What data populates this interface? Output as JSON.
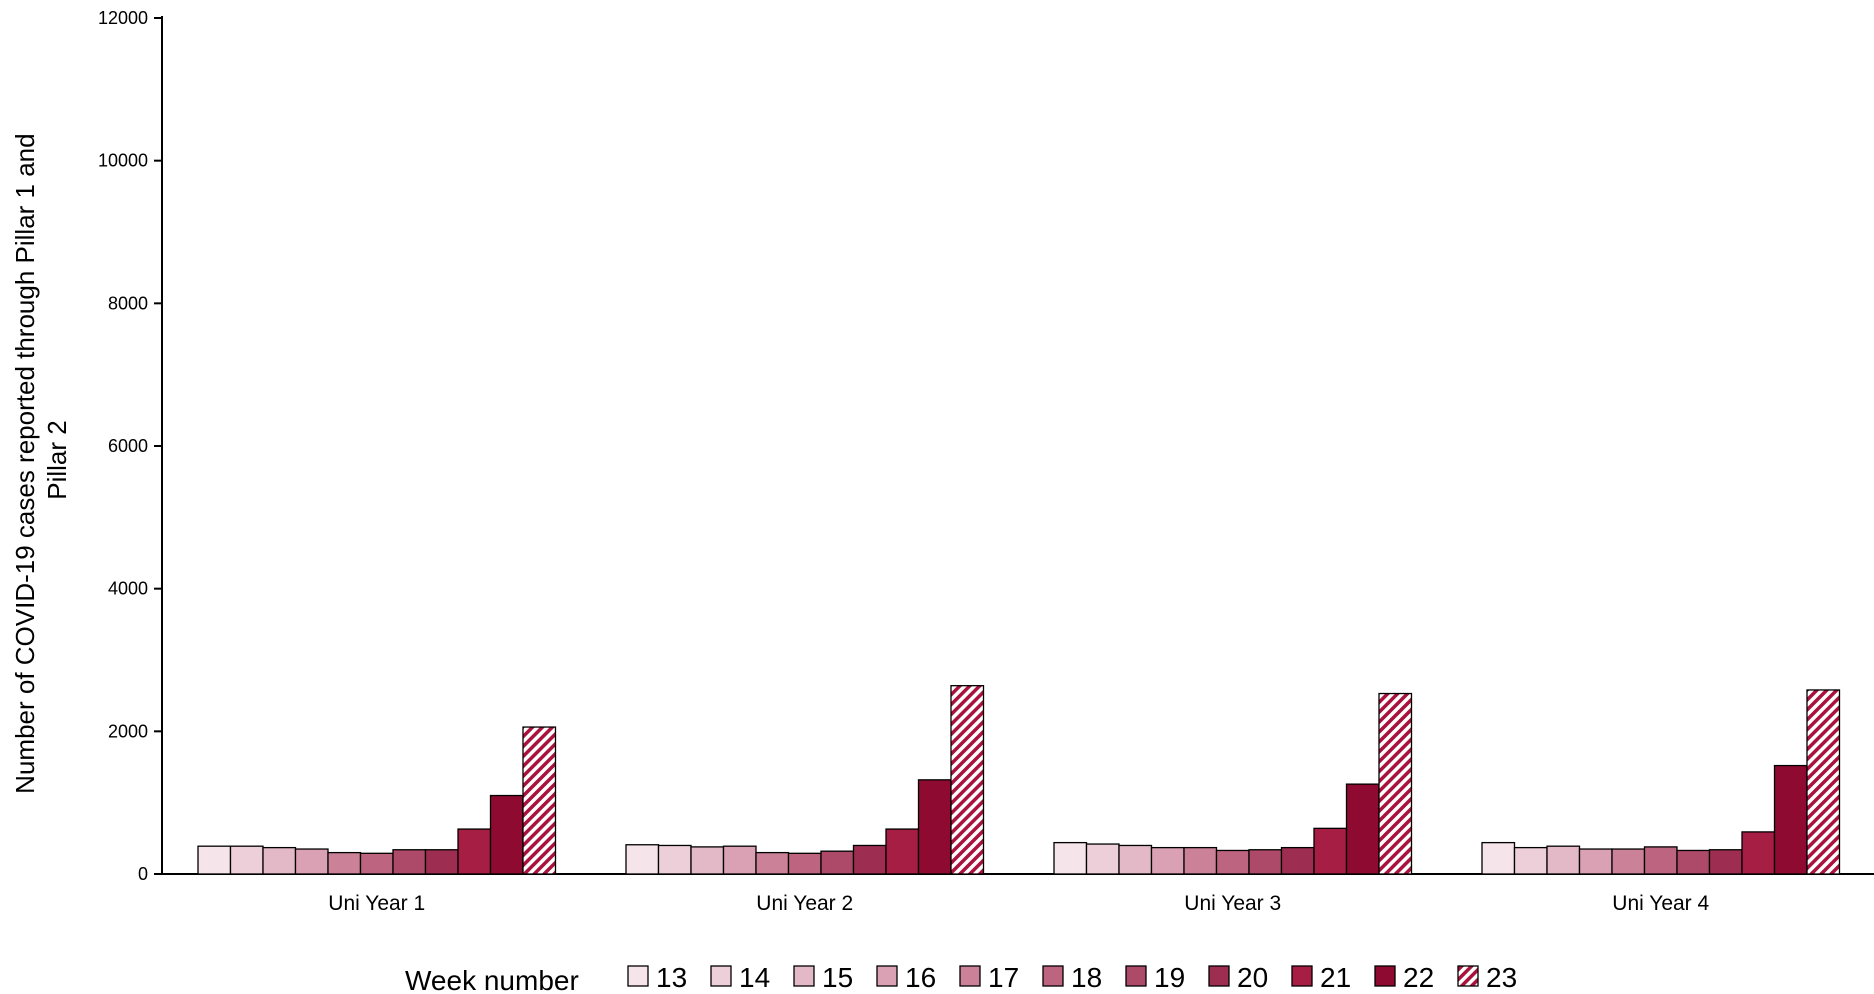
{
  "chart_data": {
    "type": "bar",
    "ylabel": "Number of COVID-19 cases reported through Pillar 1 and Pillar 2",
    "ylabel_lines": [
      "Number of COVID-19 cases reported through Pillar 1 and",
      "Pillar 2"
    ],
    "xlabel": "",
    "ylim": [
      0,
      12000
    ],
    "yticks": [
      0,
      2000,
      4000,
      6000,
      8000,
      10000,
      12000
    ],
    "grid": false,
    "legend_title": "Week number",
    "legend_position": "bottom",
    "categories": [
      "Uni Year 1",
      "Uni Year 2",
      "Uni Year 3",
      "Uni Year 4"
    ],
    "series": [
      {
        "name": "13",
        "color": "#f5e4ea",
        "values": [
          390,
          410,
          440,
          440
        ]
      },
      {
        "name": "14",
        "color": "#eccfd9",
        "values": [
          390,
          400,
          420,
          370
        ]
      },
      {
        "name": "15",
        "color": "#e3b9c8",
        "values": [
          370,
          380,
          400,
          390
        ]
      },
      {
        "name": "16",
        "color": "#d9a1b3",
        "values": [
          350,
          390,
          370,
          350
        ]
      },
      {
        "name": "17",
        "color": "#cb8298",
        "values": [
          300,
          300,
          370,
          350
        ]
      },
      {
        "name": "18",
        "color": "#bd6480",
        "values": [
          290,
          290,
          330,
          380
        ]
      },
      {
        "name": "19",
        "color": "#ad4a69",
        "values": [
          340,
          320,
          340,
          330
        ]
      },
      {
        "name": "20",
        "color": "#9d2e52",
        "values": [
          340,
          400,
          370,
          340
        ]
      },
      {
        "name": "21",
        "color": "#a61e44",
        "values": [
          630,
          630,
          640,
          590
        ]
      },
      {
        "name": "22",
        "color": "#8e0a30",
        "values": [
          1100,
          1320,
          1260,
          1520
        ]
      },
      {
        "name": "23",
        "color": "#a8123c",
        "pattern": "hatch",
        "values": [
          2060,
          2640,
          2530,
          2580
        ]
      }
    ]
  }
}
